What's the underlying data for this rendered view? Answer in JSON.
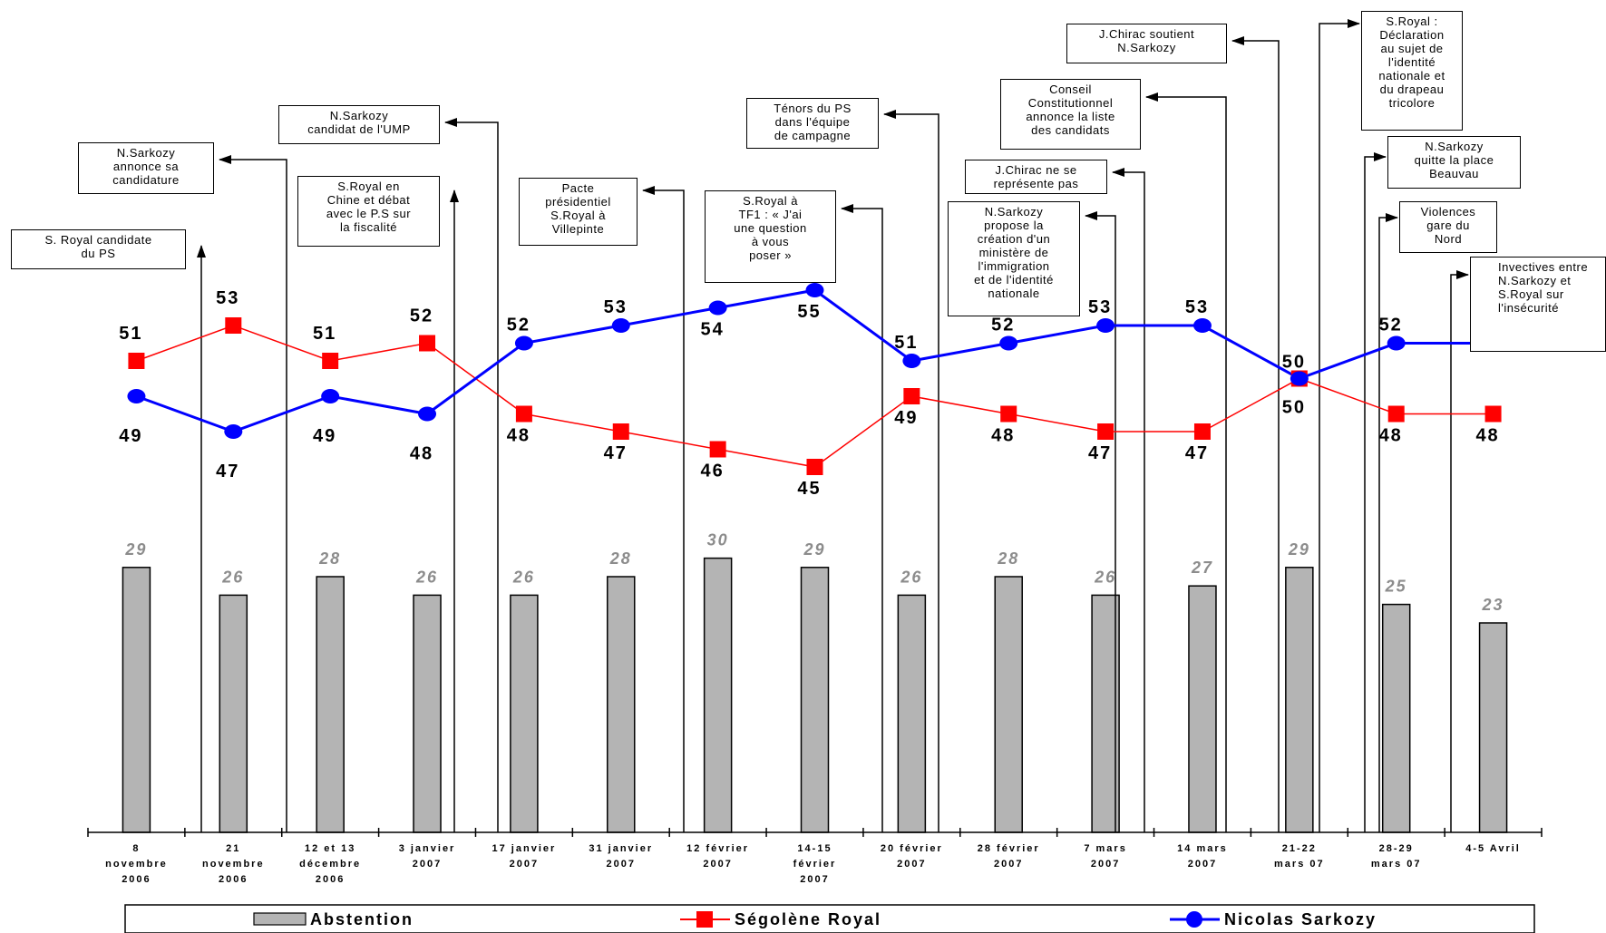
{
  "chart_data": {
    "type": "bar+line",
    "categories": [
      "8\nnovembre\n2006",
      "21\nnovembre\n2006",
      "12 et 13\ndécembre\n2006",
      "3 janvier\n2007",
      "17 janvier\n2007",
      "31 janvier\n2007",
      "12 février\n2007",
      "14-15\nfévrier\n2007",
      "20 février\n2007",
      "28 février\n2007",
      "7 mars\n2007",
      "14 mars\n2007",
      "21-22\nmars 07",
      "28-29\nmars 07",
      "4-5 Avril"
    ],
    "series": [
      {
        "name": "Abstention",
        "type": "bar",
        "color": "#b4b4b4",
        "values": [
          29,
          26,
          28,
          26,
          26,
          28,
          30,
          29,
          26,
          28,
          26,
          27,
          29,
          25,
          23
        ]
      },
      {
        "name": "Ségolène Royal",
        "type": "line",
        "color": "#ff0000",
        "marker": "square",
        "values": [
          51,
          53,
          51,
          52,
          48,
          47,
          46,
          45,
          49,
          48,
          47,
          47,
          50,
          48,
          48
        ]
      },
      {
        "name": "Nicolas Sarkozy",
        "type": "line",
        "color": "#0000ff",
        "marker": "circle",
        "values": [
          49,
          47,
          49,
          48,
          52,
          53,
          54,
          55,
          51,
          52,
          53,
          53,
          50,
          52,
          52
        ]
      }
    ],
    "annotations": [
      {
        "text": "S. Royal candidate\ndu PS",
        "after_category": 0
      },
      {
        "text": "N.Sarkozy\nannonce sa\ncandidature",
        "after_category": 1
      },
      {
        "text": "N.Sarkozy\ncandidat de l'UMP",
        "after_category": 3
      },
      {
        "text": "S.Royal en\nChine et débat\navec le P.S sur\nla fiscalité",
        "after_category": 3
      },
      {
        "text": "Pacte\nprésidentiel\nS.Royal à\nVillepinte",
        "after_category": 6
      },
      {
        "text": "S.Royal à\nTF1 : « J'ai\nune question\nà vous\nposer »",
        "after_category": 7
      },
      {
        "text": "Ténors du PS\ndans l'équipe\nde campagne",
        "after_category": 8
      },
      {
        "text": "N.Sarkozy\npropose la\ncréation d'un\nministère de\nl'immigration\net de l'identité\nnationale",
        "after_category": 10
      },
      {
        "text": "J.Chirac ne se\nreprésente pas",
        "after_category": 10
      },
      {
        "text": "Conseil\nConstitutionnel\nannonce la liste\ndes candidats",
        "after_category": 11
      },
      {
        "text": "J.Chirac soutient\nN.Sarkozy",
        "after_category": 12
      },
      {
        "text": "S.Royal :\nDéclaration\nau sujet de\nl'identité\nnationale et\ndu drapeau\ntricolore",
        "after_category": 12
      },
      {
        "text": "N.Sarkozy\nquitte la place\nBeauvau",
        "after_category": 13
      },
      {
        "text": "Violences\ngare du\nNord",
        "after_category": 13
      },
      {
        "text": "Invectives entre\nN.Sarkozy et\nS.Royal sur\nl'insécurité",
        "after_category": 14
      }
    ],
    "legend_position": "bottom",
    "grid": false
  }
}
